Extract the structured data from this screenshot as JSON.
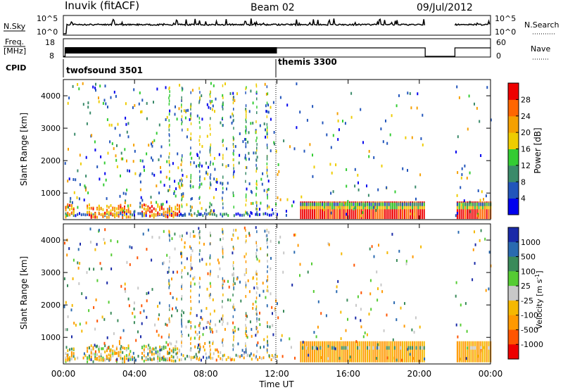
{
  "header": {
    "station": "Inuvik (fitACF)",
    "beam": "Beam 02",
    "date": "09/Jul/2012"
  },
  "param_panels": {
    "nsky_label": "N.Sky",
    "nsky_ticks": [
      "10^5",
      "10^0"
    ],
    "nsearch_label": "N.Search",
    "freq_label_1": "Freq.",
    "freq_label_2": "[MHz]",
    "freq_ticks": [
      "18",
      "8"
    ],
    "nave_ticks": [
      "60",
      "0"
    ],
    "nave_label": "Nave",
    "cpid_label": "CPID",
    "cpid_modes": [
      "twofsound 3501",
      "themis 3300"
    ]
  },
  "chart_data": [
    {
      "type": "heatmap",
      "title": "",
      "xlabel": "Time UT",
      "ylabel": "Slant Range [km]",
      "x_ticks": [
        "00:00",
        "04:00",
        "08:00",
        "12:00",
        "16:00",
        "20:00",
        "00:00"
      ],
      "y_ticks": [
        1000,
        2000,
        3000,
        4000
      ],
      "xlim_hours": [
        0,
        24
      ],
      "ylim_km": [
        180,
        4500
      ],
      "colorbar": {
        "label": "Power [dB]",
        "ticks": [
          "4",
          "8",
          "12",
          "16",
          "20",
          "24",
          "28"
        ],
        "colors": [
          "#0000ee",
          "#2255bb",
          "#3a8a6a",
          "#33cc33",
          "#eecc00",
          "#f5a000",
          "#ff6600",
          "#ee0000"
        ]
      },
      "mode_change_hour": 12,
      "data_gap_hours": [
        20.33,
        22.0
      ]
    },
    {
      "type": "heatmap",
      "title": "",
      "xlabel": "Time UT",
      "ylabel": "Slant Range [km]",
      "x_ticks": [
        "00:00",
        "04:00",
        "08:00",
        "12:00",
        "16:00",
        "20:00",
        "00:00"
      ],
      "y_ticks": [
        1000,
        2000,
        3000,
        4000
      ],
      "xlim_hours": [
        0,
        24
      ],
      "ylim_km": [
        180,
        4500
      ],
      "colorbar": {
        "label": "Velocity [m s^-1]",
        "ticks": [
          "1000",
          "500",
          "100",
          "25",
          "-25",
          "-100",
          "-500",
          "-1000"
        ],
        "colors": [
          "#1a2aa8",
          "#2a6ab0",
          "#3a8a5a",
          "#55cc33",
          "#c8c8c8",
          "#f5b800",
          "#ff9900",
          "#ff5500",
          "#ee0000"
        ]
      },
      "mode_change_hour": 12,
      "data_gap_hours": [
        20.33,
        22.0
      ]
    }
  ],
  "colors": {
    "ground_scatter": "#a8a8a8",
    "axis": "#000000"
  }
}
